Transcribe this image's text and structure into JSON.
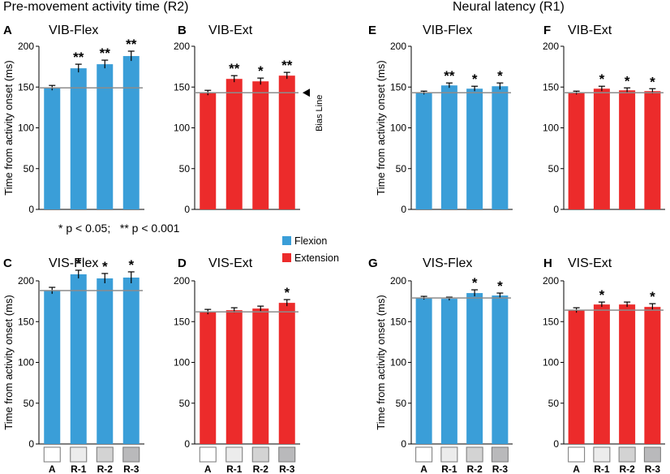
{
  "section_titles": {
    "left": "Pre-movement activity time (R2)",
    "right": "Neural latency (R1)"
  },
  "significance_note": "* p < 0.05;   ** p < 0.001",
  "bias_line_label": "Bias Line",
  "legend": {
    "items": [
      {
        "label": "Flexion",
        "color": "#3a9ed8"
      },
      {
        "label": "Extension",
        "color": "#ec2b2b"
      }
    ]
  },
  "colors": {
    "flexion": "#3a9ed8",
    "extension": "#ec2b2b",
    "baseline": "#8c8c8c",
    "swatches": [
      "#ffffff",
      "#ececec",
      "#d3d3d3",
      "#b9b9bb"
    ]
  },
  "chart_data": [
    {
      "panel": "A",
      "type": "bar",
      "title": "VIB-Flex",
      "series_color": "flexion",
      "ylabel": "Time from activity onset (ms)",
      "ylim": [
        0,
        200
      ],
      "yticks": [
        0,
        50,
        100,
        150,
        200
      ],
      "categories": [
        "A",
        "R-1",
        "R-2",
        "R-3"
      ],
      "show_categories": false,
      "values": [
        149,
        173,
        178,
        188
      ],
      "errors": [
        3,
        5,
        5,
        6
      ],
      "significance": [
        "",
        "**",
        "**",
        "**"
      ],
      "baseline": 149
    },
    {
      "panel": "B",
      "type": "bar",
      "title": "VIB-Ext",
      "series_color": "extension",
      "ylabel": "",
      "ylim": [
        0,
        200
      ],
      "yticks": [
        0,
        50,
        100,
        150,
        200
      ],
      "categories": [
        "A",
        "R-1",
        "R-2",
        "R-3"
      ],
      "show_categories": false,
      "values": [
        143,
        160,
        157,
        164
      ],
      "errors": [
        3,
        4,
        4,
        4
      ],
      "significance": [
        "",
        "**",
        "*",
        "**"
      ],
      "baseline": 143
    },
    {
      "panel": "C",
      "type": "bar",
      "title": "VIS-Flex",
      "series_color": "flexion",
      "ylabel": "Time from activity onset (ms)",
      "ylim": [
        0,
        200
      ],
      "yticks": [
        0,
        50,
        100,
        150,
        200
      ],
      "categories": [
        "A",
        "R-1",
        "R-2",
        "R-3"
      ],
      "show_categories": true,
      "values": [
        188,
        208,
        203,
        204
      ],
      "errors": [
        4,
        5,
        6,
        7
      ],
      "significance": [
        "",
        "*",
        "*",
        "*"
      ],
      "baseline": 188
    },
    {
      "panel": "D",
      "type": "bar",
      "title": "VIS-Ext",
      "series_color": "extension",
      "ylabel": "",
      "ylim": [
        0,
        200
      ],
      "yticks": [
        0,
        50,
        100,
        150,
        200
      ],
      "categories": [
        "A",
        "R-1",
        "R-2",
        "R-3"
      ],
      "show_categories": true,
      "values": [
        162,
        164,
        166,
        173
      ],
      "errors": [
        3,
        3,
        3,
        4
      ],
      "significance": [
        "",
        "",
        "",
        "*"
      ],
      "baseline": 162
    },
    {
      "panel": "E",
      "type": "bar",
      "title": "VIB-Flex",
      "series_color": "flexion",
      "ylabel": "Time from activity onset (ms)",
      "ylim": [
        0,
        200
      ],
      "yticks": [
        0,
        50,
        100,
        150,
        200
      ],
      "categories": [
        "A",
        "R-1",
        "R-2",
        "R-3"
      ],
      "show_categories": false,
      "values": [
        143,
        152,
        148,
        151
      ],
      "errors": [
        2,
        3,
        3,
        4
      ],
      "significance": [
        "",
        "**",
        "*",
        "*"
      ],
      "baseline": 143
    },
    {
      "panel": "F",
      "type": "bar",
      "title": "VIB-Ext",
      "series_color": "extension",
      "ylabel": "",
      "ylim": [
        0,
        200
      ],
      "yticks": [
        0,
        50,
        100,
        150,
        200
      ],
      "categories": [
        "A",
        "R-1",
        "R-2",
        "R-3"
      ],
      "show_categories": false,
      "values": [
        143,
        148,
        146,
        145
      ],
      "errors": [
        2,
        3,
        3,
        3
      ],
      "significance": [
        "",
        "*",
        "*",
        "*"
      ],
      "baseline": 143
    },
    {
      "panel": "G",
      "type": "bar",
      "title": "VIS-Flex",
      "series_color": "flexion",
      "ylabel": "Time from activity onset (ms)",
      "ylim": [
        0,
        200
      ],
      "yticks": [
        0,
        50,
        100,
        150,
        200
      ],
      "categories": [
        "A",
        "R-1",
        "R-2",
        "R-3"
      ],
      "show_categories": true,
      "values": [
        179,
        178,
        185,
        182
      ],
      "errors": [
        2,
        2,
        4,
        3
      ],
      "significance": [
        "",
        "",
        "*",
        "*"
      ],
      "baseline": 179
    },
    {
      "panel": "H",
      "type": "bar",
      "title": "VIS-Ext",
      "series_color": "extension",
      "ylabel": "",
      "ylim": [
        0,
        200
      ],
      "yticks": [
        0,
        50,
        100,
        150,
        200
      ],
      "categories": [
        "A",
        "R-1",
        "R-2",
        "R-3"
      ],
      "show_categories": true,
      "values": [
        164,
        171,
        171,
        168
      ],
      "errors": [
        3,
        3,
        3,
        4
      ],
      "significance": [
        "",
        "*",
        "",
        "*"
      ],
      "baseline": 164
    }
  ]
}
